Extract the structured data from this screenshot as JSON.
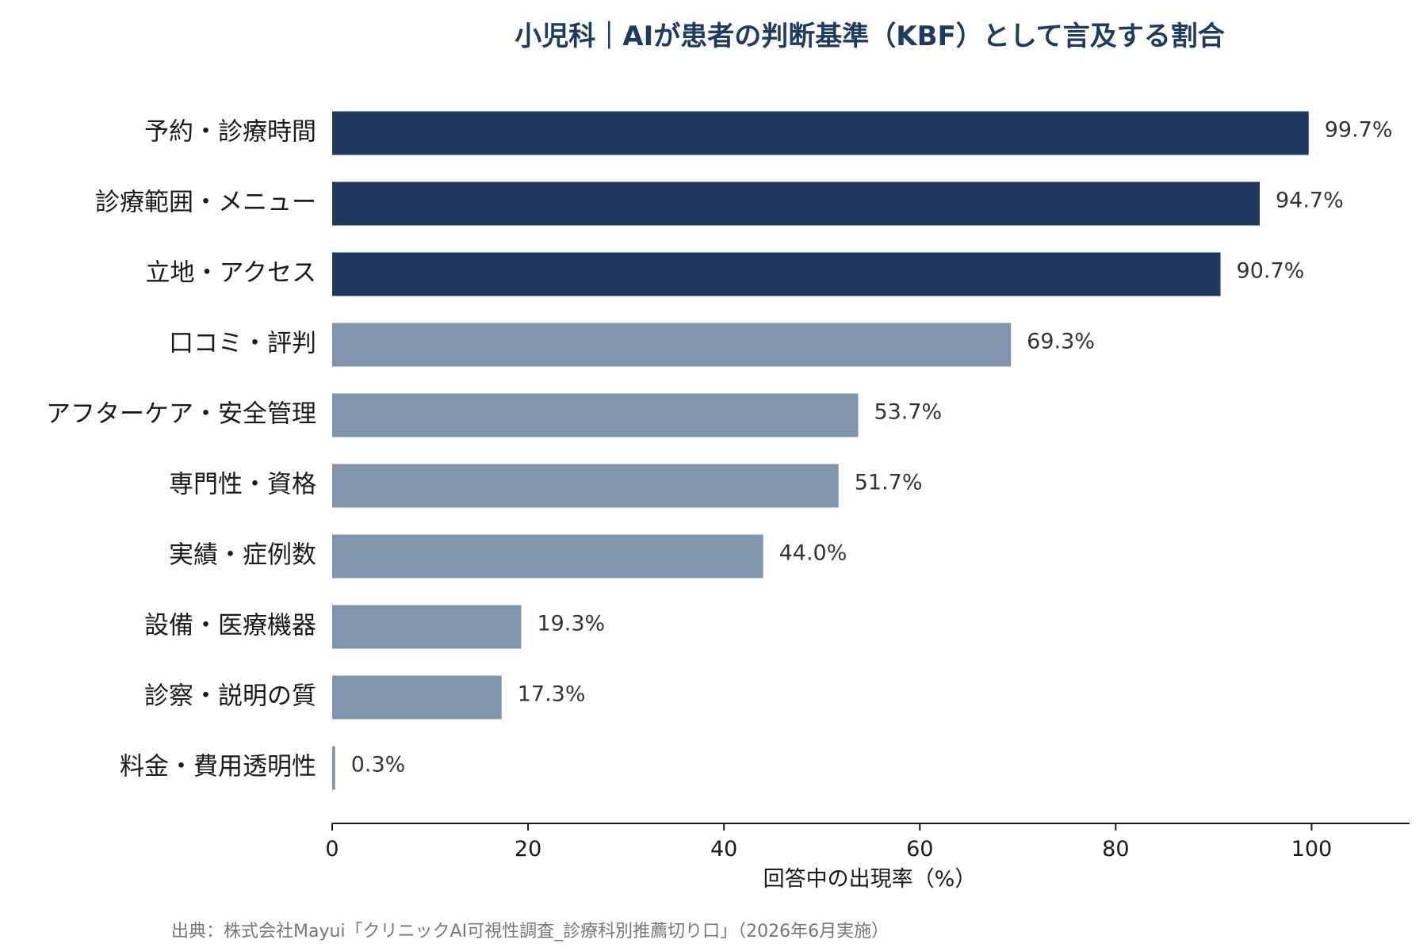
{
  "chart_data": {
    "type": "bar",
    "orientation": "horizontal",
    "title": "小児科｜AIが患者の判断基準（KBF）として言及する割合",
    "xlabel": "回答中の出現率（%）",
    "ylabel": "",
    "xlim": [
      0,
      110
    ],
    "xticks": [
      0,
      20,
      40,
      60,
      80,
      100
    ],
    "xtick_labels": [
      "0",
      "20",
      "40",
      "60",
      "80",
      "100"
    ],
    "grid": false,
    "legend": "none",
    "categories": [
      "予約・診療時間",
      "診療範囲・メニュー",
      "立地・アクセス",
      "口コミ・評判",
      "アフターケア・安全管理",
      "専門性・資格",
      "実績・症例数",
      "設備・医療機器",
      "診察・説明の質",
      "料金・費用透明性"
    ],
    "values": [
      99.7,
      94.7,
      90.7,
      69.3,
      53.7,
      51.7,
      44.0,
      19.3,
      17.3,
      0.3
    ],
    "value_labels": [
      "99.7%",
      "94.7%",
      "90.7%",
      "69.3%",
      "53.7%",
      "51.7%",
      "44.0%",
      "19.3%",
      "17.3%",
      "0.3%"
    ],
    "highlight_count": 3,
    "colors": {
      "highlight": "#1f3a5f",
      "normal": "#7f95ad",
      "title": "#1f3a5f",
      "axis": "#1a1a1a"
    }
  },
  "source": "出典：株式会社Mayui「クリニックAI可視性調査_診療科別推薦切り口」（2026年6月実施）"
}
